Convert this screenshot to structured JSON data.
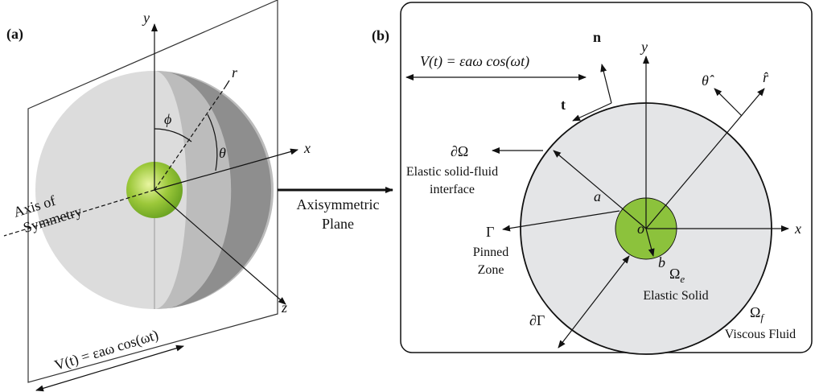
{
  "panel_a": {
    "label": "(a)",
    "axis_y": "y",
    "axis_r": "r",
    "angle_phi": "ϕ",
    "angle_theta": "θ",
    "axis_x": "x",
    "axis_z": "z",
    "symmetry_axis": [
      "Axis of",
      "Symmetry"
    ],
    "velocity": "V(t) = εaω cos(ωt)"
  },
  "transfer_label": [
    "Axisymmetric",
    "Plane"
  ],
  "panel_b": {
    "label": "(b)",
    "normal": "n",
    "tangent": "t",
    "axis_y": "y",
    "theta_hat": "θ̂",
    "r_hat": "r̂",
    "axis_x": "x",
    "velocity": "V(t) = εaω cos(ωt)",
    "interface_symbol": "∂Ω",
    "interface_label": [
      "Elastic solid-fluid",
      "interface"
    ],
    "radius_a": "a",
    "origin": "o",
    "radius_b": "b",
    "pinned_symbol": "Γ",
    "pinned_label": [
      "Pinned",
      "Zone"
    ],
    "boundary_symbol": "∂Γ",
    "solid": {
      "symbol": "Ω",
      "subscript": "e",
      "label": "Elastic Solid"
    },
    "fluid": {
      "symbol": "Ω",
      "subscript": "f",
      "label": "Viscous Fluid"
    }
  }
}
